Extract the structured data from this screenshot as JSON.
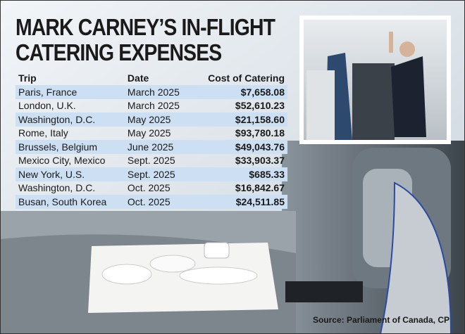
{
  "title": {
    "lines": [
      "MARK CARNEY’S IN-FLIGHT",
      "CATERING EXPENSES"
    ]
  },
  "table": {
    "headers": [
      "Trip",
      "Date",
      "Cost of Catering"
    ],
    "rows": [
      [
        "Paris, France",
        "March 2025",
        "$7,658.08"
      ],
      [
        "London, U.K.",
        "March 2025",
        "$52,610.23"
      ],
      [
        "Washington, D.C.",
        "May 2025",
        "$21,158.60"
      ],
      [
        "Rome, Italy",
        "May 2025",
        "$93,780.18"
      ],
      [
        "Brussels, Belgium",
        "June 2025",
        "$49,043.76"
      ],
      [
        "Mexico City, Mexico",
        "Sept. 2025",
        "$33,903.37"
      ],
      [
        "New York, U.S.",
        "Sept. 2025",
        "$685.33"
      ],
      [
        "Washington, D.C.",
        "Oct. 2025",
        "$16,842.67"
      ],
      [
        "Busan, South Korea",
        "Oct. 2025",
        "$24,511.85"
      ]
    ]
  },
  "source": "Source: Parliament of Canada, CP"
}
